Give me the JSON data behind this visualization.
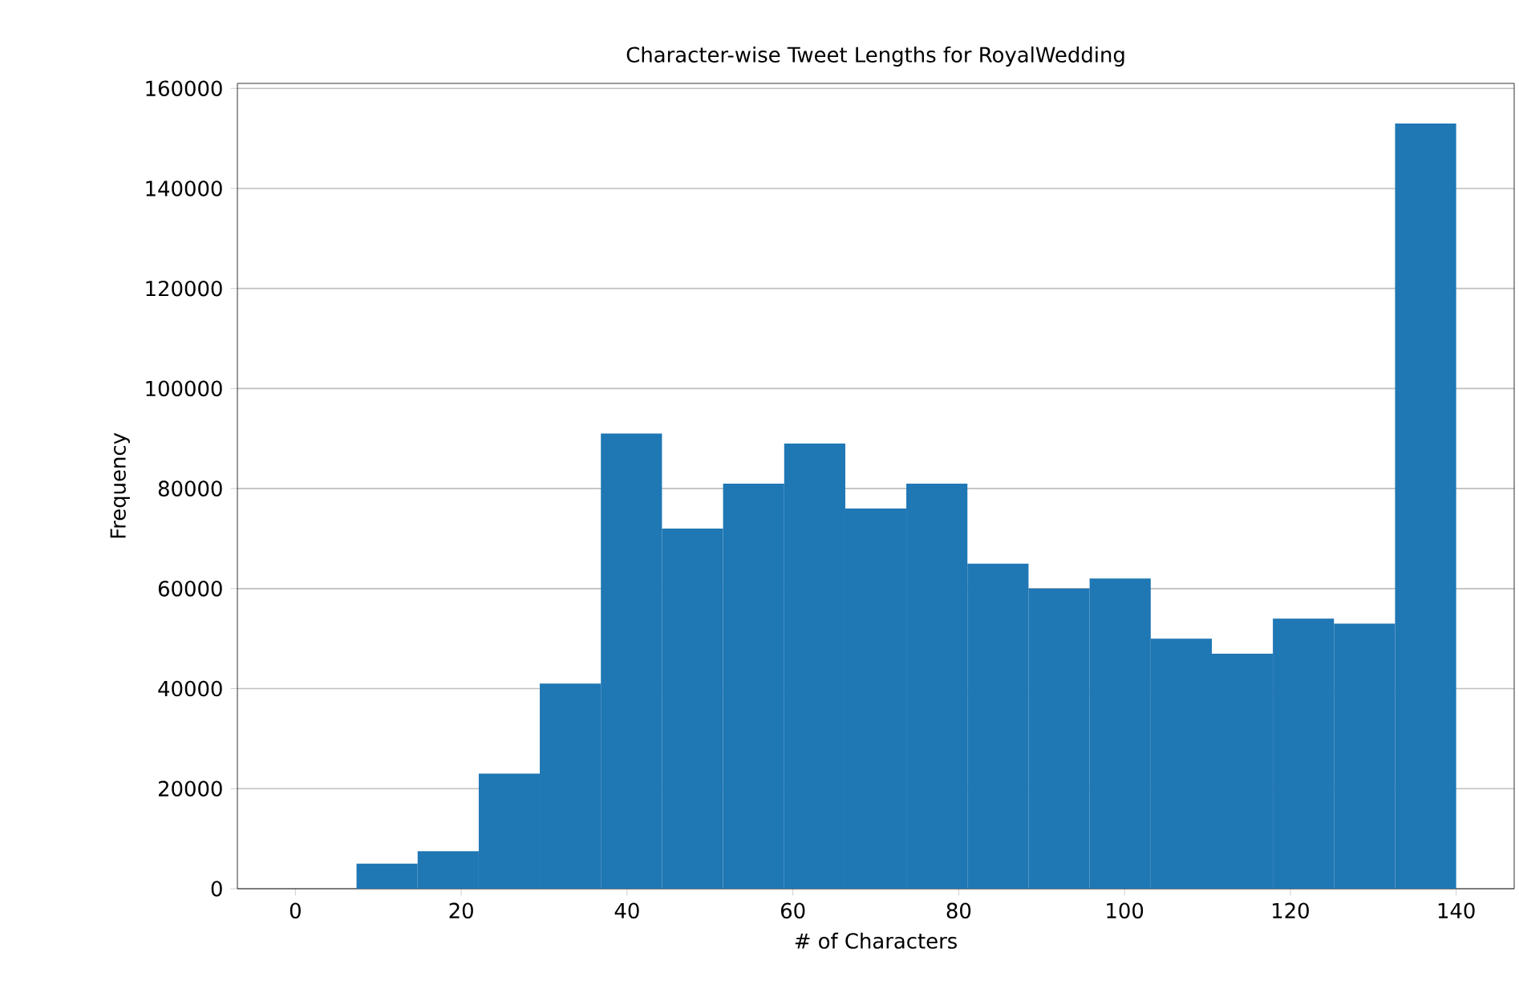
{
  "chart_data": {
    "type": "histogram",
    "title": "Character-wise Tweet Lengths for RoyalWedding",
    "xlabel": "# of Characters",
    "ylabel": "Frequency",
    "bins": [
      0,
      7.37,
      14.74,
      22.11,
      29.47,
      36.84,
      44.21,
      51.58,
      58.95,
      66.32,
      73.68,
      81.05,
      88.42,
      95.79,
      103.16,
      110.53,
      117.89,
      125.26,
      132.63,
      140
    ],
    "values": [
      0,
      5000,
      7500,
      23000,
      41000,
      91000,
      72000,
      81000,
      89000,
      76000,
      81000,
      65000,
      60000,
      62000,
      50000,
      47000,
      54000,
      53000,
      153000
    ],
    "color": "#1f77b4",
    "xlim": [
      -7,
      147
    ],
    "ylim": [
      0,
      161000
    ],
    "xticks": [
      0,
      20,
      40,
      60,
      80,
      100,
      120,
      140
    ],
    "yticks": [
      0,
      20000,
      40000,
      60000,
      80000,
      100000,
      120000,
      140000,
      160000
    ],
    "grid": "y"
  }
}
